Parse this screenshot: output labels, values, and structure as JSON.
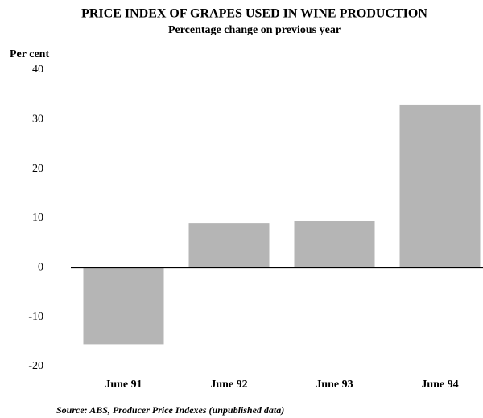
{
  "chart_data": {
    "type": "bar",
    "title": "PRICE INDEX OF GRAPES USED IN WINE PRODUCTION",
    "subtitle": "Percentage change on previous year",
    "y_label": "Per cent",
    "source": "Source: ABS, Producer Price Indexes (unpublished data)",
    "categories": [
      "June 91",
      "June 92",
      "June 93",
      "June 94"
    ],
    "values": [
      -15.5,
      9,
      9.5,
      33
    ],
    "color": "#b5b5b5",
    "ylim": [
      -20,
      40
    ],
    "yticks": [
      -20,
      -10,
      0,
      10,
      20,
      30,
      40
    ],
    "grid": false
  }
}
